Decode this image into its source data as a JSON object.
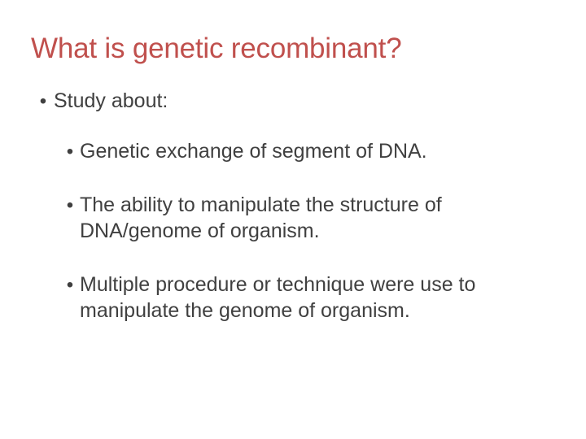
{
  "colors": {
    "title": "#c0504d",
    "body_text": "#404040",
    "background": "#ffffff"
  },
  "typography": {
    "title_fontsize": 35,
    "body_fontsize": 25,
    "font_family": "Arial"
  },
  "title": "What is genetic recombinant?",
  "bullets": {
    "level1": {
      "marker": "•",
      "text": "Study about:"
    },
    "level2": [
      {
        "marker": "•",
        "text": "Genetic exchange of segment of DNA."
      },
      {
        "marker": "•",
        "text": "The ability to manipulate the structure of DNA/genome of organism."
      },
      {
        "marker": "•",
        "text": "Multiple procedure or technique were use to manipulate the genome of organism."
      }
    ]
  }
}
